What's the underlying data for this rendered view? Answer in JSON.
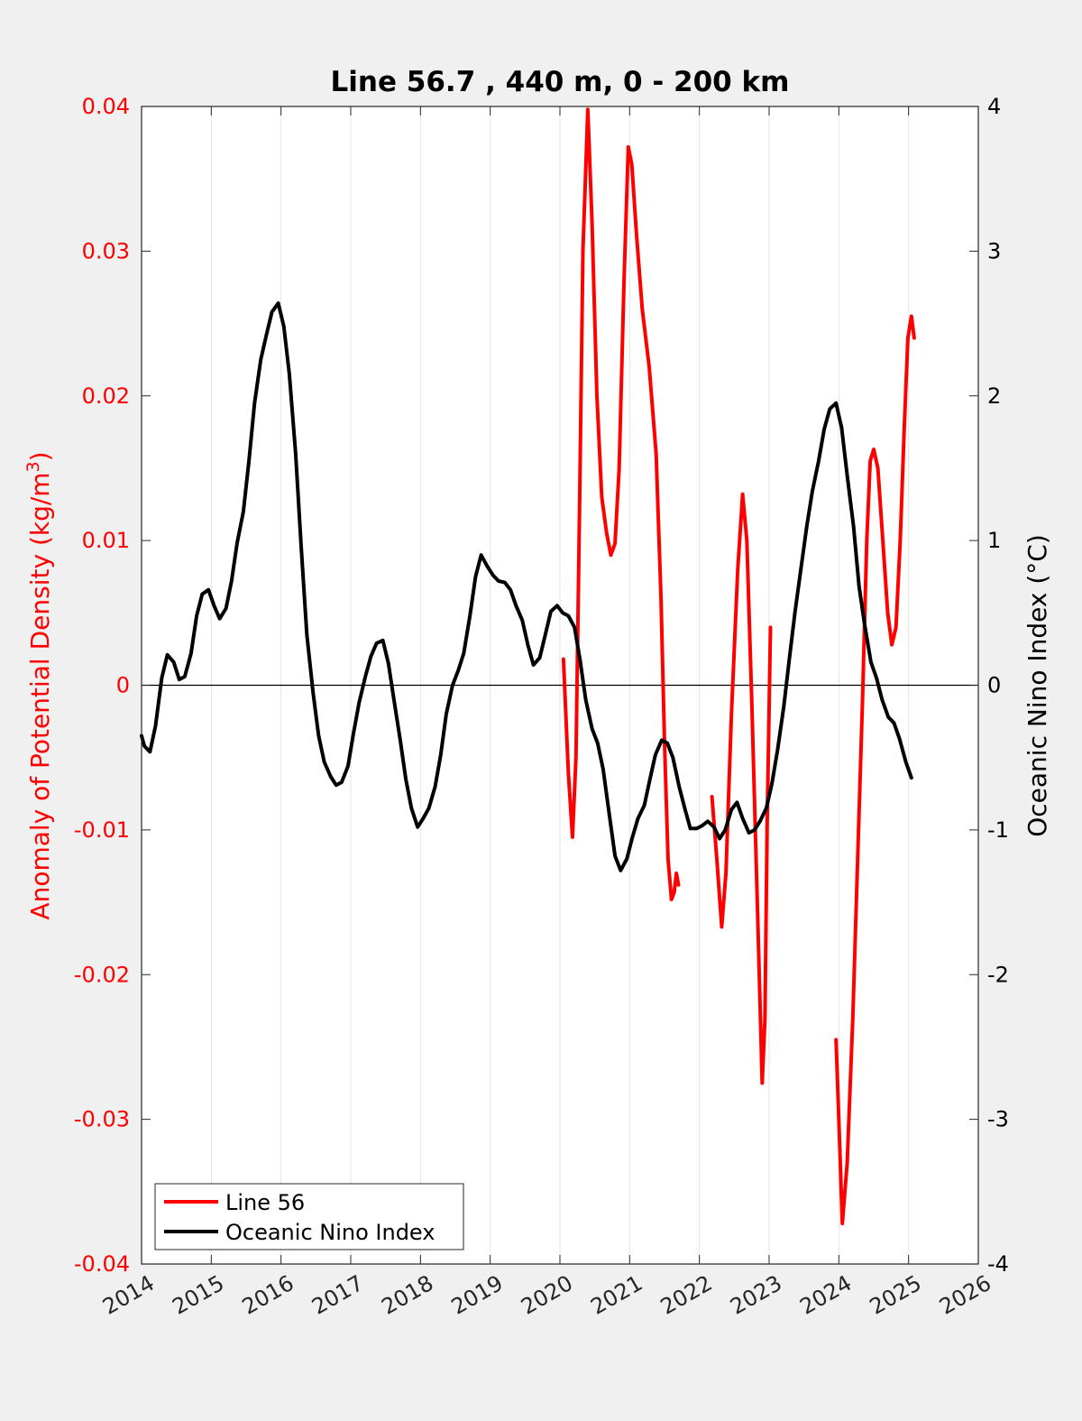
{
  "chart_data": {
    "type": "line",
    "title": "Line 56.7 , 440 m, 0 - 200 km",
    "ylabel_left_prefix": "Anomaly of Potential Density (kg/m",
    "ylabel_left_sup": "3",
    "ylabel_left_suffix": ")",
    "ylabel_right": "Oceanic Nino Index (°C)",
    "xlim": [
      2014,
      2026
    ],
    "ylim_left": [
      -0.04,
      0.04
    ],
    "ylim_right": [
      -4,
      4
    ],
    "x_ticks": [
      "2014",
      "2015",
      "2016",
      "2017",
      "2018",
      "2019",
      "2020",
      "2021",
      "2022",
      "2023",
      "2024",
      "2025",
      "2026"
    ],
    "y_left_ticks": [
      "0.04",
      "0.03",
      "0.02",
      "0.01",
      "0",
      "-0.01",
      "-0.02",
      "-0.03",
      "-0.04"
    ],
    "y_right_ticks": [
      "4",
      "3",
      "2",
      "1",
      "0",
      "-1",
      "-2",
      "-3",
      "-4"
    ],
    "grid": "vertical",
    "zero_line": true,
    "legend_position": "bottom-left",
    "colors": {
      "line56": "#ff0000",
      "oni": "#000000",
      "left_axis": "#ff0000",
      "right_axis": "#000000"
    },
    "series": [
      {
        "name": "Line 56",
        "axis": "left",
        "segments": [
          [
            [
              2020.05,
              0.0018
            ],
            [
              2020.12,
              -0.006
            ],
            [
              2020.18,
              -0.0105
            ],
            [
              2020.23,
              -0.005
            ],
            [
              2020.28,
              0.012
            ],
            [
              2020.33,
              0.03
            ],
            [
              2020.4,
              0.0398
            ],
            [
              2020.46,
              0.032
            ],
            [
              2020.53,
              0.02
            ],
            [
              2020.6,
              0.013
            ],
            [
              2020.67,
              0.0105
            ],
            [
              2020.73,
              0.009
            ],
            [
              2020.79,
              0.0098
            ],
            [
              2020.85,
              0.015
            ],
            [
              2020.92,
              0.028
            ],
            [
              2020.98,
              0.0372
            ],
            [
              2021.03,
              0.036
            ],
            [
              2021.1,
              0.031
            ],
            [
              2021.18,
              0.026
            ],
            [
              2021.28,
              0.022
            ],
            [
              2021.38,
              0.016
            ],
            [
              2021.45,
              0.006
            ],
            [
              2021.5,
              -0.004
            ],
            [
              2021.55,
              -0.012
            ],
            [
              2021.6,
              -0.0148
            ],
            [
              2021.64,
              -0.0143
            ],
            [
              2021.67,
              -0.013
            ],
            [
              2021.7,
              -0.0138
            ]
          ],
          [
            [
              2022.18,
              -0.0077
            ],
            [
              2022.25,
              -0.012
            ],
            [
              2022.32,
              -0.0167
            ],
            [
              2022.38,
              -0.013
            ],
            [
              2022.46,
              -0.002
            ],
            [
              2022.55,
              0.008
            ],
            [
              2022.62,
              0.0132
            ],
            [
              2022.68,
              0.01
            ],
            [
              2022.75,
              -0.001
            ],
            [
              2022.83,
              -0.015
            ],
            [
              2022.9,
              -0.0275
            ],
            [
              2022.94,
              -0.023
            ],
            [
              2022.97,
              -0.01
            ],
            [
              2023.02,
              0.004
            ]
          ],
          [
            [
              2023.96,
              -0.0245
            ],
            [
              2024.0,
              -0.03
            ],
            [
              2024.05,
              -0.0372
            ],
            [
              2024.12,
              -0.033
            ],
            [
              2024.2,
              -0.023
            ],
            [
              2024.27,
              -0.012
            ],
            [
              2024.34,
              -0.001
            ],
            [
              2024.4,
              0.01
            ],
            [
              2024.45,
              0.0155
            ],
            [
              2024.5,
              0.0163
            ],
            [
              2024.56,
              0.015
            ],
            [
              2024.63,
              0.01
            ],
            [
              2024.7,
              0.005
            ],
            [
              2024.76,
              0.0028
            ],
            [
              2024.82,
              0.004
            ],
            [
              2024.88,
              0.01
            ],
            [
              2024.94,
              0.018
            ],
            [
              2024.99,
              0.024
            ],
            [
              2025.04,
              0.0255
            ],
            [
              2025.08,
              0.024
            ]
          ]
        ]
      },
      {
        "name": "Oceanic Nino Index",
        "axis": "right",
        "segments": [
          [
            [
              2014.0,
              -0.35
            ],
            [
              2014.04,
              -0.42
            ],
            [
              2014.12,
              -0.46
            ],
            [
              2014.2,
              -0.28
            ],
            [
              2014.29,
              0.05
            ],
            [
              2014.37,
              0.21
            ],
            [
              2014.46,
              0.16
            ],
            [
              2014.54,
              0.04
            ],
            [
              2014.62,
              0.06
            ],
            [
              2014.71,
              0.22
            ],
            [
              2014.79,
              0.48
            ],
            [
              2014.87,
              0.63
            ],
            [
              2014.96,
              0.66
            ],
            [
              2015.04,
              0.55
            ],
            [
              2015.12,
              0.46
            ],
            [
              2015.21,
              0.53
            ],
            [
              2015.29,
              0.72
            ],
            [
              2015.37,
              0.98
            ],
            [
              2015.46,
              1.2
            ],
            [
              2015.54,
              1.55
            ],
            [
              2015.62,
              1.95
            ],
            [
              2015.71,
              2.25
            ],
            [
              2015.79,
              2.42
            ],
            [
              2015.87,
              2.58
            ],
            [
              2015.96,
              2.64
            ],
            [
              2016.04,
              2.48
            ],
            [
              2016.12,
              2.15
            ],
            [
              2016.21,
              1.6
            ],
            [
              2016.29,
              0.95
            ],
            [
              2016.37,
              0.35
            ],
            [
              2016.46,
              -0.05
            ],
            [
              2016.54,
              -0.35
            ],
            [
              2016.62,
              -0.53
            ],
            [
              2016.71,
              -0.63
            ],
            [
              2016.79,
              -0.69
            ],
            [
              2016.87,
              -0.67
            ],
            [
              2016.96,
              -0.56
            ],
            [
              2017.04,
              -0.33
            ],
            [
              2017.12,
              -0.12
            ],
            [
              2017.21,
              0.06
            ],
            [
              2017.29,
              0.2
            ],
            [
              2017.37,
              0.29
            ],
            [
              2017.46,
              0.31
            ],
            [
              2017.54,
              0.15
            ],
            [
              2017.62,
              -0.1
            ],
            [
              2017.71,
              -0.38
            ],
            [
              2017.79,
              -0.65
            ],
            [
              2017.87,
              -0.85
            ],
            [
              2017.96,
              -0.98
            ],
            [
              2018.04,
              -0.92
            ],
            [
              2018.12,
              -0.85
            ],
            [
              2018.21,
              -0.7
            ],
            [
              2018.29,
              -0.48
            ],
            [
              2018.37,
              -0.2
            ],
            [
              2018.46,
              0.0
            ],
            [
              2018.54,
              0.1
            ],
            [
              2018.62,
              0.22
            ],
            [
              2018.71,
              0.48
            ],
            [
              2018.79,
              0.75
            ],
            [
              2018.87,
              0.9
            ],
            [
              2018.96,
              0.82
            ],
            [
              2019.04,
              0.76
            ],
            [
              2019.12,
              0.72
            ],
            [
              2019.21,
              0.71
            ],
            [
              2019.29,
              0.66
            ],
            [
              2019.37,
              0.55
            ],
            [
              2019.46,
              0.45
            ],
            [
              2019.54,
              0.28
            ],
            [
              2019.62,
              0.14
            ],
            [
              2019.71,
              0.19
            ],
            [
              2019.79,
              0.35
            ],
            [
              2019.87,
              0.51
            ],
            [
              2019.96,
              0.55
            ],
            [
              2020.04,
              0.5
            ],
            [
              2020.12,
              0.48
            ],
            [
              2020.21,
              0.4
            ],
            [
              2020.29,
              0.17
            ],
            [
              2020.37,
              -0.1
            ],
            [
              2020.46,
              -0.3
            ],
            [
              2020.54,
              -0.4
            ],
            [
              2020.62,
              -0.58
            ],
            [
              2020.71,
              -0.9
            ],
            [
              2020.79,
              -1.18
            ],
            [
              2020.87,
              -1.28
            ],
            [
              2020.96,
              -1.2
            ],
            [
              2021.04,
              -1.05
            ],
            [
              2021.12,
              -0.92
            ],
            [
              2021.21,
              -0.83
            ],
            [
              2021.29,
              -0.65
            ],
            [
              2021.37,
              -0.48
            ],
            [
              2021.46,
              -0.38
            ],
            [
              2021.54,
              -0.4
            ],
            [
              2021.62,
              -0.5
            ],
            [
              2021.71,
              -0.7
            ],
            [
              2021.79,
              -0.85
            ],
            [
              2021.87,
              -0.99
            ],
            [
              2021.96,
              -0.99
            ],
            [
              2022.04,
              -0.97
            ],
            [
              2022.12,
              -0.94
            ],
            [
              2022.21,
              -0.98
            ],
            [
              2022.29,
              -1.06
            ],
            [
              2022.37,
              -1.0
            ],
            [
              2022.46,
              -0.86
            ],
            [
              2022.54,
              -0.81
            ],
            [
              2022.62,
              -0.92
            ],
            [
              2022.71,
              -1.02
            ],
            [
              2022.79,
              -1.0
            ],
            [
              2022.87,
              -0.94
            ],
            [
              2022.96,
              -0.85
            ],
            [
              2023.04,
              -0.68
            ],
            [
              2023.12,
              -0.45
            ],
            [
              2023.21,
              -0.15
            ],
            [
              2023.29,
              0.18
            ],
            [
              2023.37,
              0.5
            ],
            [
              2023.46,
              0.82
            ],
            [
              2023.54,
              1.1
            ],
            [
              2023.62,
              1.34
            ],
            [
              2023.71,
              1.55
            ],
            [
              2023.79,
              1.77
            ],
            [
              2023.87,
              1.91
            ],
            [
              2023.96,
              1.95
            ],
            [
              2024.04,
              1.78
            ],
            [
              2024.12,
              1.45
            ],
            [
              2024.21,
              1.1
            ],
            [
              2024.29,
              0.68
            ],
            [
              2024.37,
              0.42
            ],
            [
              2024.46,
              0.16
            ],
            [
              2024.54,
              0.05
            ],
            [
              2024.62,
              -0.1
            ],
            [
              2024.71,
              -0.22
            ],
            [
              2024.79,
              -0.26
            ],
            [
              2024.87,
              -0.37
            ],
            [
              2024.96,
              -0.53
            ],
            [
              2025.04,
              -0.64
            ]
          ]
        ]
      }
    ]
  }
}
